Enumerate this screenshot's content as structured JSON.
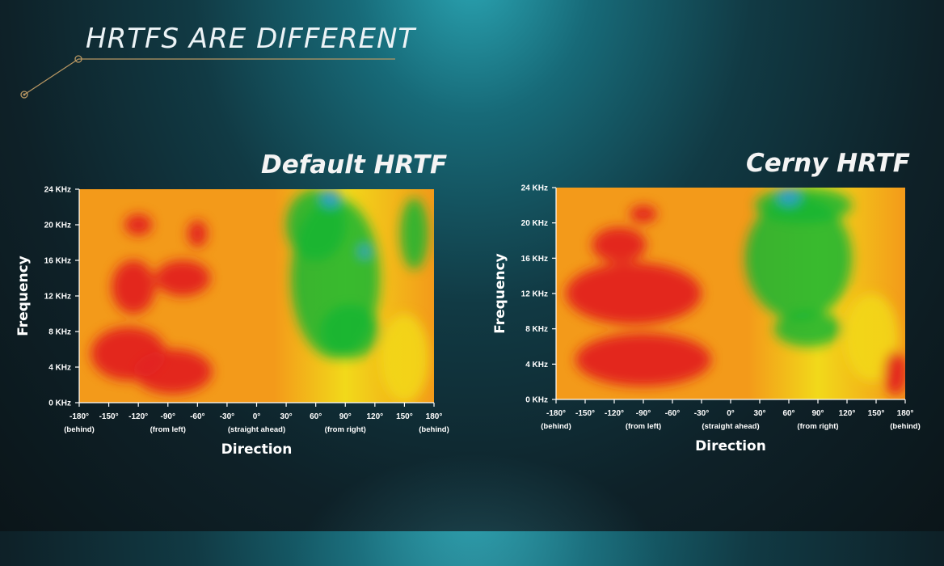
{
  "slide": {
    "title": "HRTFS ARE DIFFERENT"
  },
  "colors": {
    "low": "#2e9be0",
    "mid_low": "#18b534",
    "mid": "#f2d91a",
    "mid_high": "#f39a1a",
    "high": "#e21f1f"
  },
  "chart_data": [
    {
      "type": "heatmap",
      "title": "Default HRTF",
      "xlabel": "Direction",
      "ylabel": "Frequency",
      "x_ticks": [
        {
          "value": -180,
          "label": "-180°",
          "note": "(behind)"
        },
        {
          "value": -150,
          "label": "-150°",
          "note": ""
        },
        {
          "value": -120,
          "label": "-120°",
          "note": ""
        },
        {
          "value": -90,
          "label": "-90°",
          "note": "(from left)"
        },
        {
          "value": -60,
          "label": "-60°",
          "note": ""
        },
        {
          "value": -30,
          "label": "-30°",
          "note": ""
        },
        {
          "value": 0,
          "label": "0°",
          "note": "(straight ahead)"
        },
        {
          "value": 30,
          "label": "30°",
          "note": ""
        },
        {
          "value": 60,
          "label": "60°",
          "note": ""
        },
        {
          "value": 90,
          "label": "90°",
          "note": "(from right)"
        },
        {
          "value": 120,
          "label": "120°",
          "note": ""
        },
        {
          "value": 150,
          "label": "150°",
          "note": ""
        },
        {
          "value": 180,
          "label": "180°",
          "note": "(behind)"
        }
      ],
      "y_ticks": [
        {
          "value": 0,
          "label": "0 KHz"
        },
        {
          "value": 4,
          "label": "4 KHz"
        },
        {
          "value": 8,
          "label": "8 KHz"
        },
        {
          "value": 12,
          "label": "12 KHz"
        },
        {
          "value": 16,
          "label": "16 KHz"
        },
        {
          "value": 20,
          "label": "20 KHz"
        },
        {
          "value": 24,
          "label": "24 KHz"
        }
      ],
      "xlim": [
        -180,
        180
      ],
      "ylim": [
        0,
        24
      ],
      "regions": [
        {
          "level": "high",
          "x": -130,
          "y": 5.5,
          "rx": 38,
          "ry": 3
        },
        {
          "level": "high",
          "x": -85,
          "y": 3.5,
          "rx": 40,
          "ry": 2.5
        },
        {
          "level": "high",
          "x": -125,
          "y": 13,
          "rx": 22,
          "ry": 3
        },
        {
          "level": "high",
          "x": -75,
          "y": 14,
          "rx": 28,
          "ry": 2
        },
        {
          "level": "high",
          "x": -120,
          "y": 20,
          "rx": 14,
          "ry": 1.2
        },
        {
          "level": "high",
          "x": -60,
          "y": 19,
          "rx": 10,
          "ry": 1.5
        },
        {
          "level": "mid",
          "x": 150,
          "y": 5,
          "rx": 25,
          "ry": 5
        },
        {
          "level": "mid_low",
          "x": 80,
          "y": 14,
          "rx": 45,
          "ry": 9
        },
        {
          "level": "mid_low",
          "x": 60,
          "y": 20,
          "rx": 30,
          "ry": 4
        },
        {
          "level": "mid_low",
          "x": 95,
          "y": 8,
          "rx": 30,
          "ry": 3
        },
        {
          "level": "mid_low",
          "x": 160,
          "y": 19,
          "rx": 14,
          "ry": 4
        },
        {
          "level": "low",
          "x": 75,
          "y": 23,
          "rx": 10,
          "ry": 1
        },
        {
          "level": "low",
          "x": 110,
          "y": 17,
          "rx": 6,
          "ry": 0.7
        }
      ]
    },
    {
      "type": "heatmap",
      "title": "Cerny HRTF",
      "xlabel": "Direction",
      "ylabel": "Frequency",
      "x_ticks": [
        {
          "value": -180,
          "label": "-180°",
          "note": "(behind)"
        },
        {
          "value": -150,
          "label": "-150°",
          "note": ""
        },
        {
          "value": -120,
          "label": "-120°",
          "note": ""
        },
        {
          "value": -90,
          "label": "-90°",
          "note": "(from left)"
        },
        {
          "value": -60,
          "label": "-60°",
          "note": ""
        },
        {
          "value": -30,
          "label": "-30°",
          "note": ""
        },
        {
          "value": 0,
          "label": "0°",
          "note": "(straight ahead)"
        },
        {
          "value": 30,
          "label": "30°",
          "note": ""
        },
        {
          "value": 60,
          "label": "60°",
          "note": ""
        },
        {
          "value": 90,
          "label": "90°",
          "note": "(from right)"
        },
        {
          "value": 120,
          "label": "120°",
          "note": ""
        },
        {
          "value": 150,
          "label": "150°",
          "note": ""
        },
        {
          "value": 180,
          "label": "180°",
          "note": "(behind)"
        }
      ],
      "y_ticks": [
        {
          "value": 0,
          "label": "0 KHz"
        },
        {
          "value": 4,
          "label": "4 KHz"
        },
        {
          "value": 8,
          "label": "8 KHz"
        },
        {
          "value": 12,
          "label": "12 KHz"
        },
        {
          "value": 16,
          "label": "16 KHz"
        },
        {
          "value": 20,
          "label": "20 KHz"
        },
        {
          "value": 24,
          "label": "24 KHz"
        }
      ],
      "xlim": [
        -180,
        180
      ],
      "ylim": [
        0,
        24
      ],
      "regions": [
        {
          "level": "high",
          "x": -100,
          "y": 12,
          "rx": 70,
          "ry": 3.5
        },
        {
          "level": "high",
          "x": -90,
          "y": 4.5,
          "rx": 70,
          "ry": 3
        },
        {
          "level": "high",
          "x": -115,
          "y": 17.5,
          "rx": 28,
          "ry": 2
        },
        {
          "level": "high",
          "x": -90,
          "y": 21,
          "rx": 14,
          "ry": 1
        },
        {
          "level": "high",
          "x": 170,
          "y": 3,
          "rx": 12,
          "ry": 2.5
        },
        {
          "level": "mid",
          "x": 145,
          "y": 7,
          "rx": 28,
          "ry": 5
        },
        {
          "level": "mid_low",
          "x": 70,
          "y": 16,
          "rx": 55,
          "ry": 7
        },
        {
          "level": "mid_low",
          "x": 75,
          "y": 22,
          "rx": 50,
          "ry": 2
        },
        {
          "level": "mid_low",
          "x": 80,
          "y": 8,
          "rx": 35,
          "ry": 2
        },
        {
          "level": "low",
          "x": 60,
          "y": 23,
          "rx": 12,
          "ry": 1
        }
      ]
    }
  ]
}
